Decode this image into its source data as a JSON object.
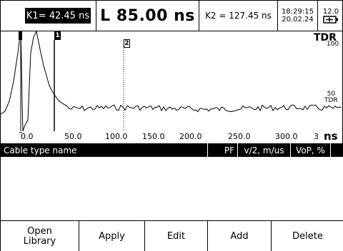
{
  "status_bar": {
    "k1": "K1= 42.45 ns",
    "length": "L 85.00 ns",
    "k2": "K2 = 127.45 ns",
    "time": "18:29:15",
    "date": "20.02.24",
    "battery_value": "12.0"
  },
  "plot": {
    "channel_label": "TDR",
    "scale_top": "100",
    "scale_mid": "50",
    "scale_mid_label": "TDR",
    "x_unit": "ns",
    "x_ticks": [
      "0.0",
      "50.0",
      "100.0",
      "150.0",
      "200.0",
      "250.0",
      "300.0",
      "3"
    ],
    "marker1_label": "1",
    "marker2_label": "2",
    "trace_color": "#000000"
  },
  "table": {
    "headers": {
      "name": "Cable type name",
      "pf": "PF",
      "v2": "v/2, m/us",
      "vop": "VoP, %"
    },
    "rows": []
  },
  "softkeys": {
    "open_library_line1": "Open",
    "open_library_line2": "Library",
    "apply": "Apply",
    "edit": "Edit",
    "add": "Add",
    "delete": "Delete"
  }
}
